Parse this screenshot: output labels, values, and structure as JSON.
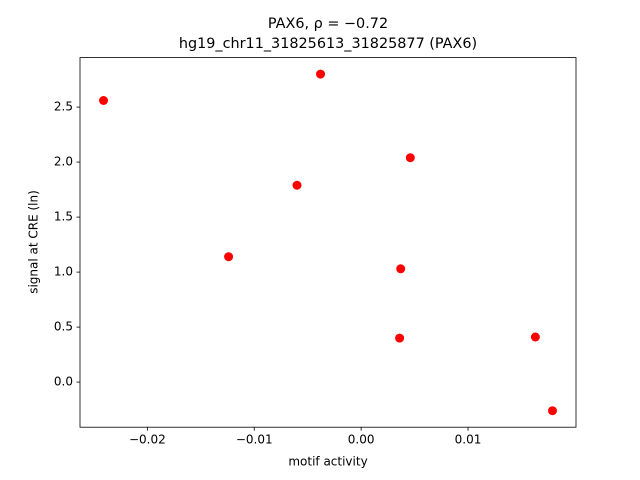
{
  "chart_data": {
    "type": "scatter",
    "title": "PAX6, ρ = −0.72",
    "subtitle": "hg19_chr11_31825613_31825877 (PAX6)",
    "x_label": "motif activity",
    "y_label": "signal at CRE (ln)",
    "color": "#ff0000",
    "x": [
      -0.0241,
      -0.0038,
      0.0046,
      -0.006,
      -0.0124,
      0.0037,
      0.0036,
      0.0163,
      0.0179
    ],
    "values": [
      2.56,
      2.8,
      2.04,
      1.79,
      1.14,
      1.03,
      0.4,
      0.41,
      -0.26
    ],
    "xlim": [
      -0.0263,
      0.0201
    ],
    "ylim": [
      -0.41,
      2.95
    ],
    "xticks": [
      {
        "value": -0.02,
        "label": "−0.02"
      },
      {
        "value": -0.01,
        "label": "−0.01"
      },
      {
        "value": 0,
        "label": "0.00"
      },
      0.01
    ],
    "yticks": [
      {
        "value": 0,
        "label": "0.0"
      },
      0.5,
      {
        "value": 1,
        "label": "1.0"
      },
      1.5,
      {
        "value": 2,
        "label": "2.0"
      },
      2.5
    ],
    "grid": false
  }
}
